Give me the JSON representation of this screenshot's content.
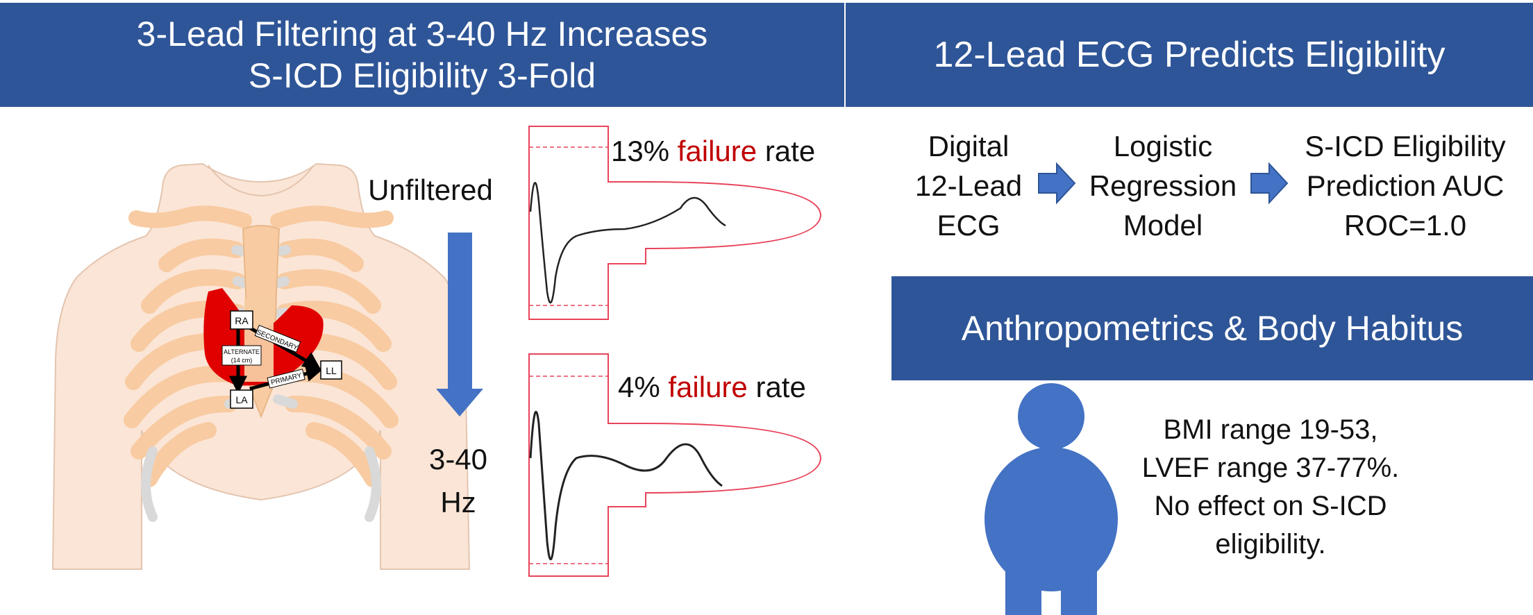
{
  "left_banner": {
    "title_line1": "3-Lead Filtering at 3-40 Hz Increases",
    "title_line2": "S-ICD Eligibility 3-Fold"
  },
  "right_banner": {
    "title": "12-Lead ECG Predicts Eligibility"
  },
  "anthro_banner": {
    "title": "Anthropometrics & Body Habitus"
  },
  "filter_labels": {
    "unfiltered": "Unfiltered",
    "filtered_line1": "3-40",
    "filtered_line2": "Hz"
  },
  "failure_rates": {
    "top_value": "13%",
    "bottom_value": "4%",
    "failure_word": "failure",
    "rate_word": "rate"
  },
  "chest_diagram": {
    "lead_ra": "RA",
    "lead_la": "LA",
    "lead_ll": "LL",
    "vector_secondary": "SECONDARY",
    "vector_primary": "PRIMARY",
    "vector_alternate_line1": "ALTERNATE",
    "vector_alternate_line2": "(14 cm)"
  },
  "pipeline": {
    "step1": [
      "Digital",
      "12-Lead",
      "ECG"
    ],
    "step2": [
      "Logistic",
      "Regression",
      "Model"
    ],
    "step3": [
      "S-ICD Eligibility",
      "Prediction AUC",
      "ROC=1.0"
    ]
  },
  "body_habitus": {
    "lines": [
      "BMI range 19-53,",
      "LVEF range 37-77%.",
      "No effect on S-ICD",
      "eligibility."
    ]
  },
  "colors": {
    "banner": "#2e5597",
    "arrow_blue": "#4472c4",
    "failure_red": "#c00000",
    "template_red": "#e8435a",
    "heart_red": "#e00000",
    "skin": "#fbe5d6",
    "bone": "#f8cba2"
  }
}
